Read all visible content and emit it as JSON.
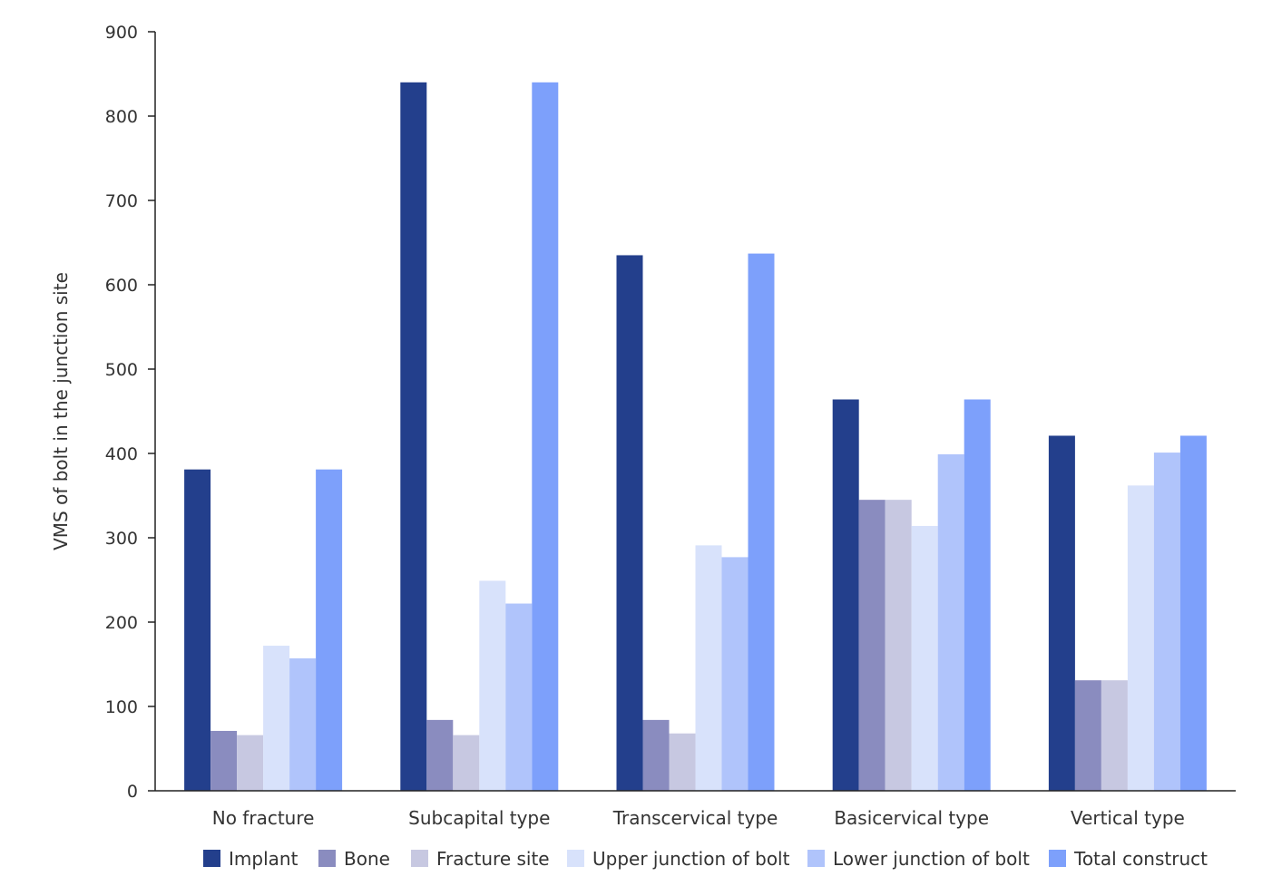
{
  "chart_data": {
    "type": "bar",
    "title": "",
    "xlabel": "",
    "ylabel": "VMS of bolt in the junction site",
    "ylim": [
      0,
      900
    ],
    "yticks": [
      0,
      100,
      200,
      300,
      400,
      500,
      600,
      700,
      800,
      900
    ],
    "grid": false,
    "legend_position": "bottom",
    "categories": [
      "No fracture",
      "Subcapital type",
      "Transcervical type",
      "Basicervical type",
      "Vertical type"
    ],
    "series": [
      {
        "name": "Implant",
        "color": "#233f8c",
        "values": [
          381,
          840,
          635,
          464,
          421
        ]
      },
      {
        "name": "Bone",
        "color": "#8a8cbf",
        "values": [
          71,
          84,
          84,
          345,
          131
        ]
      },
      {
        "name": "Fracture site",
        "color": "#c7c8e1",
        "values": [
          66,
          66,
          68,
          345,
          131
        ]
      },
      {
        "name": "Upper junction of bolt",
        "color": "#d8e2fb",
        "values": [
          172,
          249,
          291,
          314,
          362
        ]
      },
      {
        "name": "Lower junction of bolt",
        "color": "#b0c4fb",
        "values": [
          157,
          222,
          277,
          399,
          401
        ]
      },
      {
        "name": "Total construct",
        "color": "#7da0fb",
        "values": [
          381,
          840,
          637,
          464,
          421
        ]
      }
    ]
  }
}
